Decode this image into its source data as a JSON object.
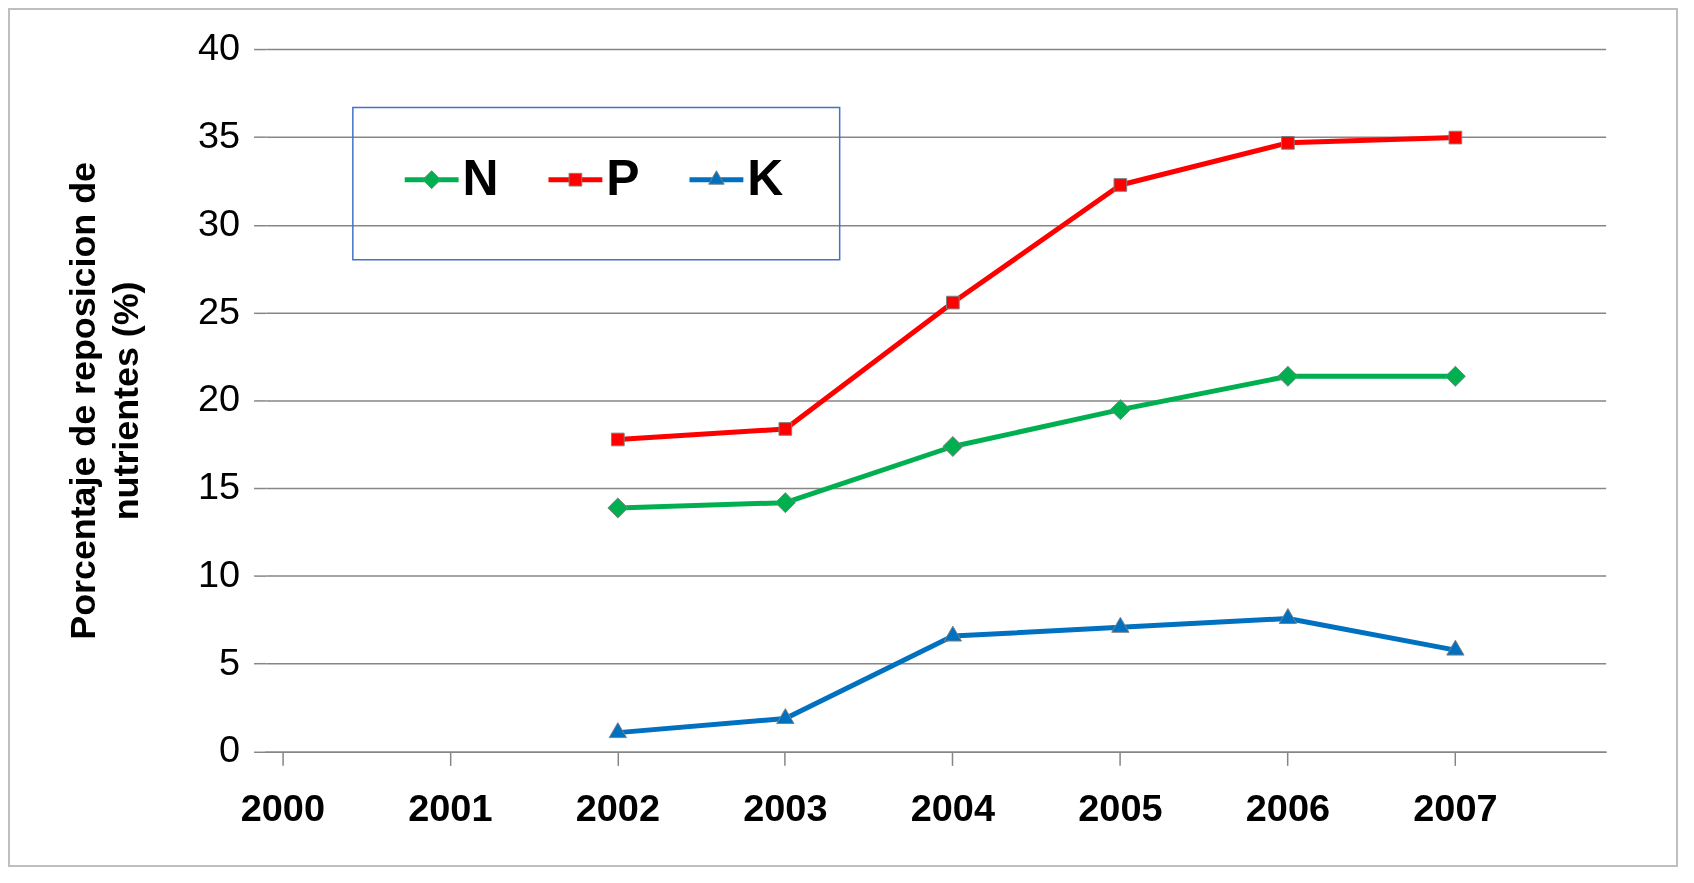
{
  "chart_data": {
    "type": "line",
    "ylabel": "Porcentaje de reposicion de nutrientes (%)",
    "x": [
      2002,
      2003,
      2004,
      2005,
      2006,
      2007
    ],
    "xlim": [
      1999.9,
      2007.9
    ],
    "xticks": [
      2000,
      2001,
      2002,
      2003,
      2004,
      2005,
      2006,
      2007
    ],
    "ylim": [
      0,
      40
    ],
    "yticks": [
      0,
      5,
      10,
      15,
      20,
      25,
      30,
      35,
      40
    ],
    "grid": "y",
    "legend": "top left",
    "series": [
      {
        "name": "N",
        "color": "#00b050",
        "marker": "diamond",
        "values": [
          13.9,
          14.2,
          17.4,
          19.5,
          21.4,
          21.4
        ]
      },
      {
        "name": "P",
        "color": "#ff0000",
        "marker": "square",
        "values": [
          17.8,
          18.4,
          25.6,
          32.3,
          34.7,
          35.0
        ]
      },
      {
        "name": "K",
        "color": "#0070c0",
        "marker": "triangle",
        "values": [
          1.1,
          1.9,
          6.6,
          7.1,
          7.6,
          5.8
        ]
      }
    ]
  }
}
